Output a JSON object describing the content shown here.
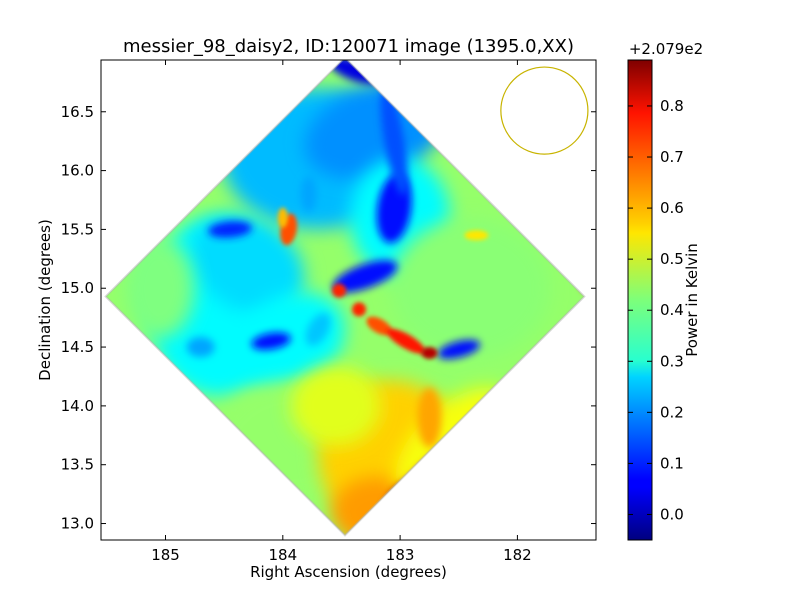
{
  "chart_data": {
    "type": "heatmap",
    "title": "messier_98_daisy2, ID:120071 image (1395.0,XX)",
    "xlabel": "Right Ascension (degrees)",
    "ylabel": "Declination (degrees)",
    "x_reversed": true,
    "xlim": [
      185.55,
      181.33
    ],
    "ylim": [
      12.86,
      16.94
    ],
    "xticks": [
      185,
      184,
      183,
      182
    ],
    "xtick_labels": [
      "185",
      "184",
      "183",
      "182"
    ],
    "yticks": [
      13.0,
      13.5,
      14.0,
      14.5,
      15.0,
      15.5,
      16.0,
      16.5
    ],
    "ytick_labels": [
      "13.0",
      "13.5",
      "14.0",
      "14.5",
      "15.0",
      "15.5",
      "16.0",
      "16.5"
    ],
    "colorbar": {
      "label": "Power in Kelvin",
      "offset_label": "+2.079e2",
      "colormap": "jet",
      "range": [
        -0.05,
        0.89
      ],
      "ticks": [
        0.0,
        0.1,
        0.2,
        0.3,
        0.4,
        0.5,
        0.6,
        0.7,
        0.8
      ],
      "tick_labels": [
        "0.0",
        "0.1",
        "0.2",
        "0.3",
        "0.4",
        "0.5",
        "0.6",
        "0.7",
        "0.8"
      ]
    },
    "map_footprint": {
      "shape": "diamond",
      "center": [
        183.47,
        14.93
      ],
      "half_extent_ra": 2.04,
      "half_extent_dec": 2.03
    },
    "beam": {
      "center": [
        181.77,
        16.51
      ],
      "radius_dec": 0.37,
      "color": "#c8b400"
    }
  }
}
